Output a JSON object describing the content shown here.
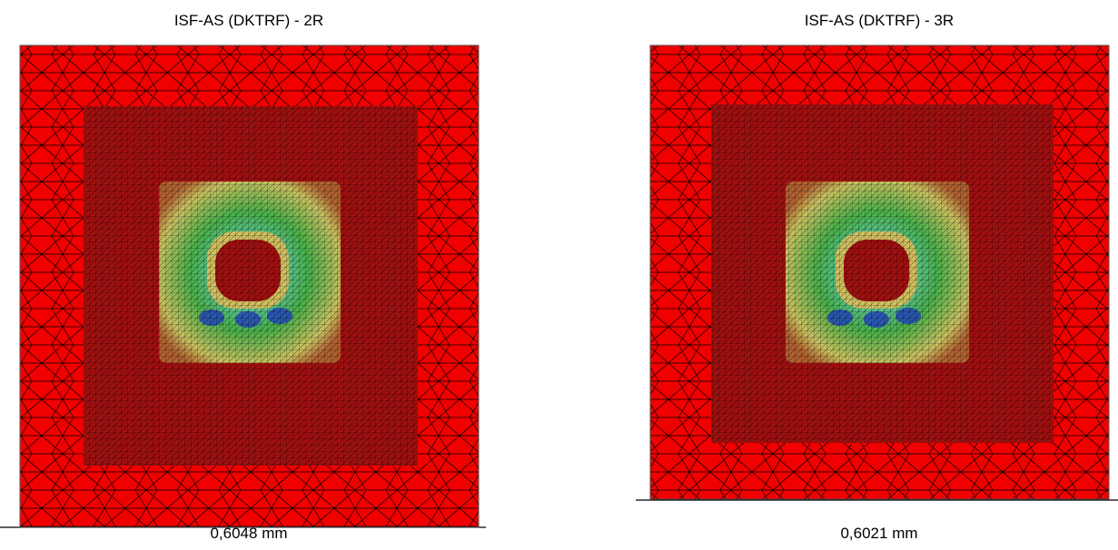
{
  "panels": [
    {
      "title": "ISF-AS (DKTRF) - 2R",
      "caption": "0,6048 mm"
    },
    {
      "title": "ISF-AS (DKTRF) - 3R",
      "caption": "0,6021 mm"
    }
  ]
}
